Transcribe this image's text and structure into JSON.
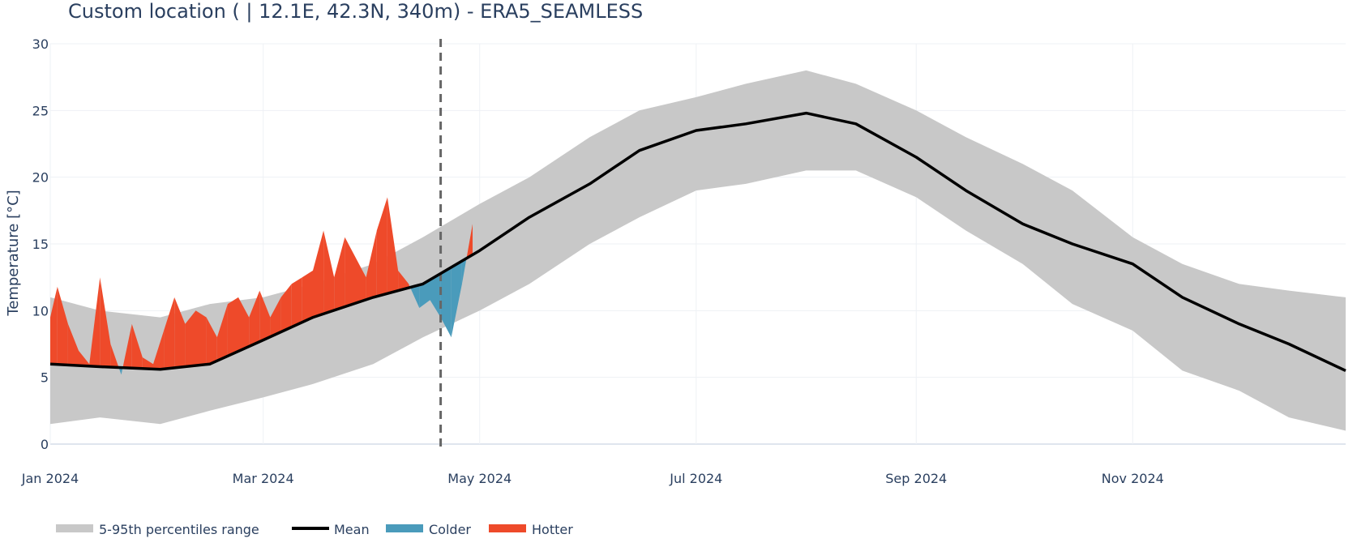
{
  "chart_data": {
    "type": "area",
    "title": "Custom location ( | 12.1E, 42.3N, 340m)  -  ERA5_SEAMLESS",
    "xlabel": "",
    "ylabel": "Temperature [°C]",
    "xlim": [
      "2024-01-01",
      "2024-12-31"
    ],
    "ylim": [
      0,
      30
    ],
    "x_ticks": [
      {
        "date": "2024-01-01",
        "label": "Jan 2024"
      },
      {
        "date": "2024-03-01",
        "label": "Mar 2024"
      },
      {
        "date": "2024-05-01",
        "label": "May 2024"
      },
      {
        "date": "2024-07-01",
        "label": "Jul 2024"
      },
      {
        "date": "2024-09-01",
        "label": "Sep 2024"
      },
      {
        "date": "2024-11-01",
        "label": "Nov 2024"
      }
    ],
    "y_ticks": [
      0,
      5,
      10,
      15,
      20,
      25,
      30
    ],
    "grid": true,
    "legend_position": "bottom-left",
    "reference_line": {
      "date": "2024-04-20",
      "style": "dashed"
    },
    "series": [
      {
        "name": "5-95th percentiles range",
        "type": "band",
        "color": "#c8c8c8",
        "x": [
          "2024-01-01",
          "2024-01-15",
          "2024-02-01",
          "2024-02-15",
          "2024-03-01",
          "2024-03-15",
          "2024-04-01",
          "2024-04-15",
          "2024-05-01",
          "2024-05-15",
          "2024-06-01",
          "2024-06-15",
          "2024-07-01",
          "2024-07-15",
          "2024-08-01",
          "2024-08-15",
          "2024-09-01",
          "2024-09-15",
          "2024-10-01",
          "2024-10-15",
          "2024-11-01",
          "2024-11-15",
          "2024-12-01",
          "2024-12-15",
          "2024-12-31"
        ],
        "lower": [
          1.5,
          2.0,
          1.5,
          2.5,
          3.5,
          4.5,
          6.0,
          8.0,
          10.0,
          12.0,
          15.0,
          17.0,
          19.0,
          19.5,
          20.5,
          20.5,
          18.5,
          16.0,
          13.5,
          10.5,
          8.5,
          5.5,
          4.0,
          2.0,
          1.0
        ],
        "upper": [
          11.0,
          10.0,
          9.5,
          10.5,
          11.0,
          12.0,
          13.5,
          15.5,
          18.0,
          20.0,
          23.0,
          25.0,
          26.0,
          27.0,
          28.0,
          27.0,
          25.0,
          23.0,
          21.0,
          19.0,
          15.5,
          13.5,
          12.0,
          11.5,
          11.0
        ]
      },
      {
        "name": "Mean",
        "type": "line",
        "color": "#000000",
        "x": [
          "2024-01-01",
          "2024-01-15",
          "2024-02-01",
          "2024-02-15",
          "2024-03-01",
          "2024-03-15",
          "2024-04-01",
          "2024-04-15",
          "2024-05-01",
          "2024-05-15",
          "2024-06-01",
          "2024-06-15",
          "2024-07-01",
          "2024-07-15",
          "2024-08-01",
          "2024-08-15",
          "2024-09-01",
          "2024-09-15",
          "2024-10-01",
          "2024-10-15",
          "2024-11-01",
          "2024-11-15",
          "2024-12-01",
          "2024-12-15",
          "2024-12-31"
        ],
        "values": [
          6.0,
          5.8,
          5.6,
          6.0,
          7.8,
          9.5,
          11.0,
          12.0,
          14.5,
          17.0,
          19.5,
          22.0,
          23.5,
          24.0,
          24.8,
          24.0,
          21.5,
          19.0,
          16.5,
          15.0,
          13.5,
          11.0,
          9.0,
          7.5,
          5.5
        ]
      },
      {
        "name": "Colder",
        "type": "fill",
        "color": "#4a9bbb"
      },
      {
        "name": "Hotter",
        "type": "fill",
        "color": "#ee4a2a"
      }
    ],
    "observed": {
      "x": [
        "2024-01-01",
        "2024-01-03",
        "2024-01-06",
        "2024-01-09",
        "2024-01-12",
        "2024-01-15",
        "2024-01-18",
        "2024-01-21",
        "2024-01-24",
        "2024-01-27",
        "2024-01-30",
        "2024-02-02",
        "2024-02-05",
        "2024-02-08",
        "2024-02-11",
        "2024-02-14",
        "2024-02-17",
        "2024-02-20",
        "2024-02-23",
        "2024-02-26",
        "2024-02-29",
        "2024-03-03",
        "2024-03-06",
        "2024-03-09",
        "2024-03-12",
        "2024-03-15",
        "2024-03-18",
        "2024-03-21",
        "2024-03-24",
        "2024-03-27",
        "2024-03-30",
        "2024-04-02",
        "2024-04-05",
        "2024-04-08",
        "2024-04-11",
        "2024-04-14",
        "2024-04-17",
        "2024-04-20",
        "2024-04-23",
        "2024-04-26",
        "2024-04-29"
      ],
      "values": [
        9.5,
        11.8,
        9.0,
        7.0,
        6.0,
        12.5,
        7.5,
        5.2,
        9.0,
        6.5,
        6.0,
        8.5,
        11.0,
        9.0,
        10.0,
        9.5,
        8.0,
        10.5,
        11.0,
        9.5,
        11.5,
        9.5,
        11.0,
        12.0,
        12.5,
        13.0,
        16.0,
        12.5,
        15.5,
        14.0,
        12.5,
        16.0,
        18.5,
        13.0,
        12.0,
        10.2,
        10.8,
        9.5,
        8.0,
        12.0,
        16.5
      ]
    }
  },
  "legend": {
    "band": "5-95th percentiles range",
    "mean": "Mean",
    "colder": "Colder",
    "hotter": "Hotter"
  }
}
